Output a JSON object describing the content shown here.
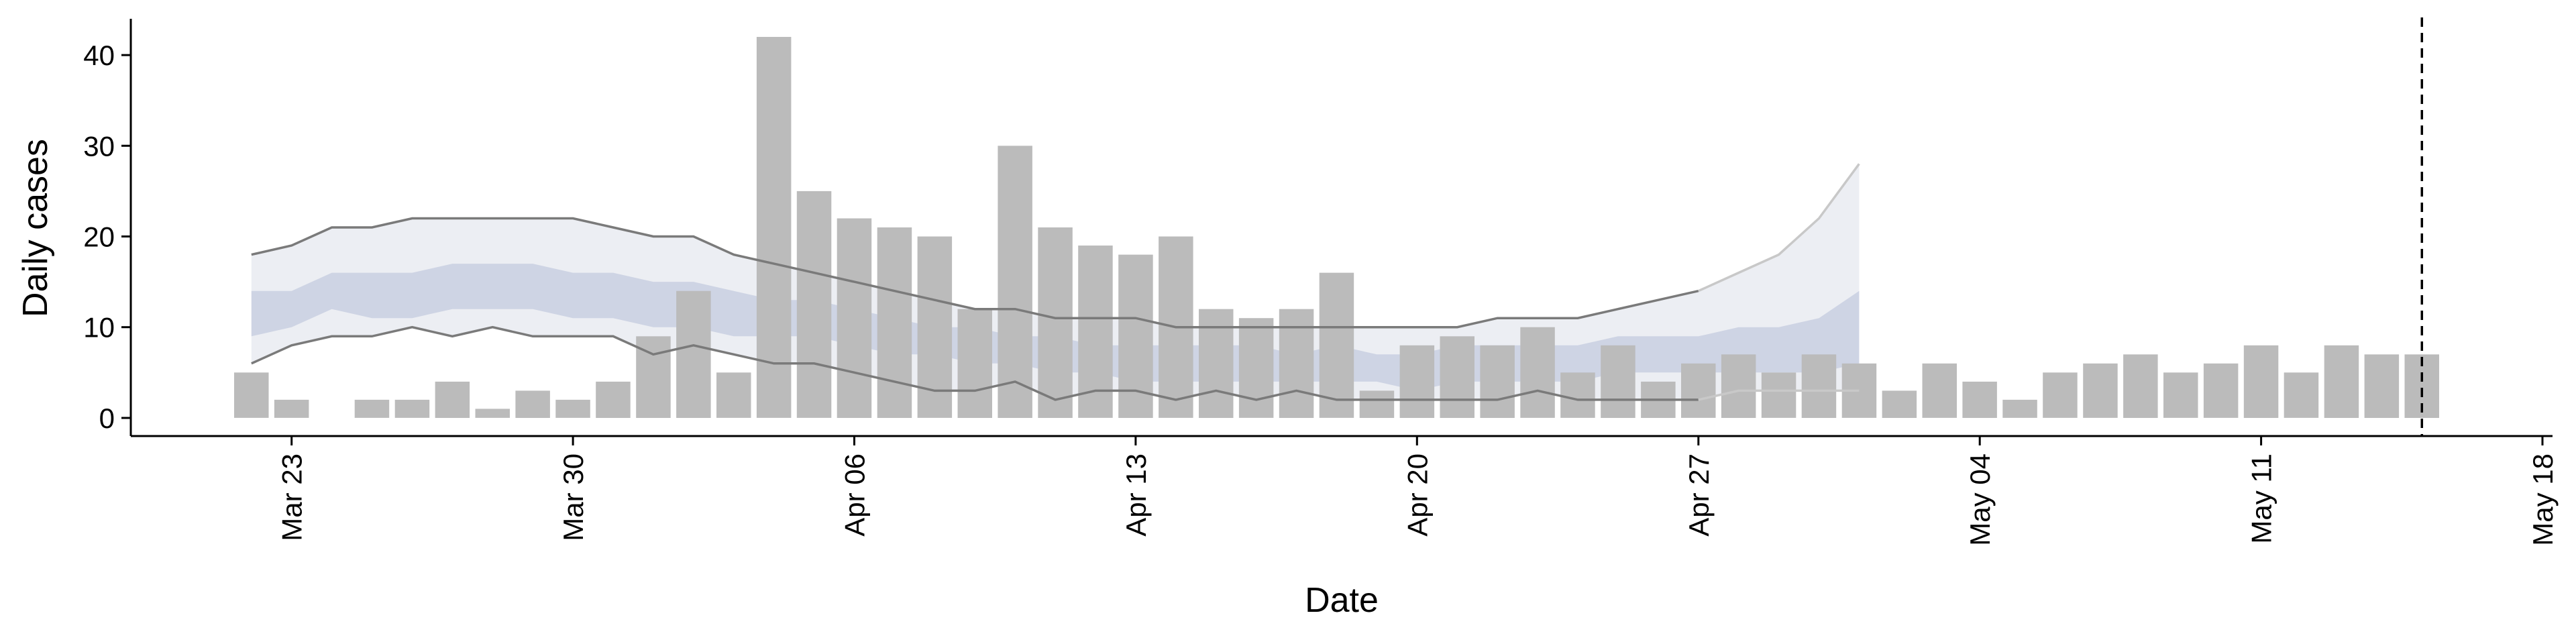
{
  "chart_data": {
    "type": "bar",
    "title": "",
    "xlabel": "Date",
    "ylabel": "Daily cases",
    "ylim": [
      -2,
      44
    ],
    "xlim": [
      "2020-03-19",
      "2020-05-18"
    ],
    "x_ticks": [
      {
        "date": "2020-03-23",
        "label": "Mar 23"
      },
      {
        "date": "2020-03-30",
        "label": "Mar 30"
      },
      {
        "date": "2020-04-06",
        "label": "Apr 06"
      },
      {
        "date": "2020-04-13",
        "label": "Apr 13"
      },
      {
        "date": "2020-04-20",
        "label": "Apr 20"
      },
      {
        "date": "2020-04-27",
        "label": "Apr 27"
      },
      {
        "date": "2020-05-04",
        "label": "May 04"
      },
      {
        "date": "2020-05-11",
        "label": "May 11"
      },
      {
        "date": "2020-05-18",
        "label": "May 18"
      }
    ],
    "y_ticks": [
      0,
      10,
      20,
      30,
      40
    ],
    "grid": false,
    "bar_color": "#bbbbbb",
    "dates": [
      "2020-03-22",
      "2020-03-23",
      "2020-03-24",
      "2020-03-25",
      "2020-03-26",
      "2020-03-27",
      "2020-03-28",
      "2020-03-29",
      "2020-03-30",
      "2020-03-31",
      "2020-04-01",
      "2020-04-02",
      "2020-04-03",
      "2020-04-04",
      "2020-04-05",
      "2020-04-06",
      "2020-04-07",
      "2020-04-08",
      "2020-04-09",
      "2020-04-10",
      "2020-04-11",
      "2020-04-12",
      "2020-04-13",
      "2020-04-14",
      "2020-04-15",
      "2020-04-16",
      "2020-04-17",
      "2020-04-18",
      "2020-04-19",
      "2020-04-20",
      "2020-04-21",
      "2020-04-22",
      "2020-04-23",
      "2020-04-24",
      "2020-04-25",
      "2020-04-26",
      "2020-04-27",
      "2020-04-28",
      "2020-04-29",
      "2020-04-30",
      "2020-05-01",
      "2020-05-02",
      "2020-05-03",
      "2020-05-04",
      "2020-05-05",
      "2020-05-06",
      "2020-05-07",
      "2020-05-08",
      "2020-05-09",
      "2020-05-10",
      "2020-05-11",
      "2020-05-12",
      "2020-05-13",
      "2020-05-14",
      "2020-05-15"
    ],
    "values": [
      5,
      2,
      0,
      2,
      2,
      4,
      1,
      3,
      2,
      4,
      9,
      14,
      5,
      42,
      25,
      22,
      21,
      20,
      12,
      30,
      21,
      19,
      18,
      20,
      12,
      11,
      12,
      16,
      3,
      8,
      9,
      8,
      10,
      5,
      8,
      4,
      6,
      7,
      5,
      7,
      6,
      3,
      6,
      4,
      2,
      5,
      6,
      7,
      5,
      6,
      8,
      5,
      8,
      7,
      7
    ],
    "forecast": {
      "dates": [
        "2020-03-22",
        "2020-03-23",
        "2020-03-24",
        "2020-03-25",
        "2020-03-26",
        "2020-03-27",
        "2020-03-28",
        "2020-03-29",
        "2020-03-30",
        "2020-03-31",
        "2020-04-01",
        "2020-04-02",
        "2020-04-03",
        "2020-04-04",
        "2020-04-05",
        "2020-04-06",
        "2020-04-07",
        "2020-04-08",
        "2020-04-09",
        "2020-04-10",
        "2020-04-11",
        "2020-04-12",
        "2020-04-13",
        "2020-04-14",
        "2020-04-15",
        "2020-04-16",
        "2020-04-17",
        "2020-04-18",
        "2020-04-19",
        "2020-04-20",
        "2020-04-21",
        "2020-04-22",
        "2020-04-23",
        "2020-04-24",
        "2020-04-25",
        "2020-04-26",
        "2020-04-27",
        "2020-04-28",
        "2020-04-29",
        "2020-04-30",
        "2020-05-01"
      ],
      "outer_upper": [
        18,
        19,
        21,
        21,
        22,
        22,
        22,
        22,
        22,
        21,
        20,
        20,
        18,
        17,
        16,
        15,
        14,
        13,
        12,
        12,
        11,
        11,
        11,
        10,
        10,
        10,
        10,
        10,
        10,
        10,
        10,
        11,
        11,
        11,
        12,
        13,
        14,
        16,
        18,
        22,
        28
      ],
      "inner_upper": [
        14,
        14,
        16,
        16,
        16,
        17,
        17,
        17,
        16,
        16,
        15,
        15,
        14,
        13,
        13,
        12,
        11,
        10,
        10,
        9,
        9,
        8,
        8,
        8,
        8,
        8,
        7,
        8,
        7,
        7,
        8,
        8,
        8,
        8,
        9,
        9,
        9,
        10,
        10,
        11,
        14
      ],
      "inner_lower": [
        9,
        10,
        12,
        11,
        11,
        12,
        12,
        12,
        11,
        11,
        10,
        10,
        9,
        9,
        9,
        8,
        7,
        7,
        6,
        6,
        5,
        5,
        4,
        4,
        4,
        4,
        4,
        4,
        4,
        3,
        4,
        4,
        4,
        4,
        5,
        5,
        5,
        5,
        5,
        5,
        6
      ],
      "outer_lower": [
        6,
        8,
        9,
        9,
        10,
        9,
        10,
        9,
        9,
        9,
        7,
        8,
        7,
        6,
        6,
        5,
        4,
        3,
        3,
        4,
        2,
        3,
        3,
        2,
        3,
        2,
        3,
        2,
        2,
        2,
        2,
        2,
        3,
        2,
        2,
        2,
        2,
        3,
        3,
        3,
        3
      ],
      "solid_until": "2020-04-27",
      "outer_color": "#e6e8ef",
      "inner_color": "#c7cde0",
      "bound_color": "#7a7a7a",
      "bound_faded_color": "#c8c8c8"
    },
    "vline": {
      "date": "2020-05-15",
      "style": "dashed",
      "color": "#000000"
    }
  }
}
